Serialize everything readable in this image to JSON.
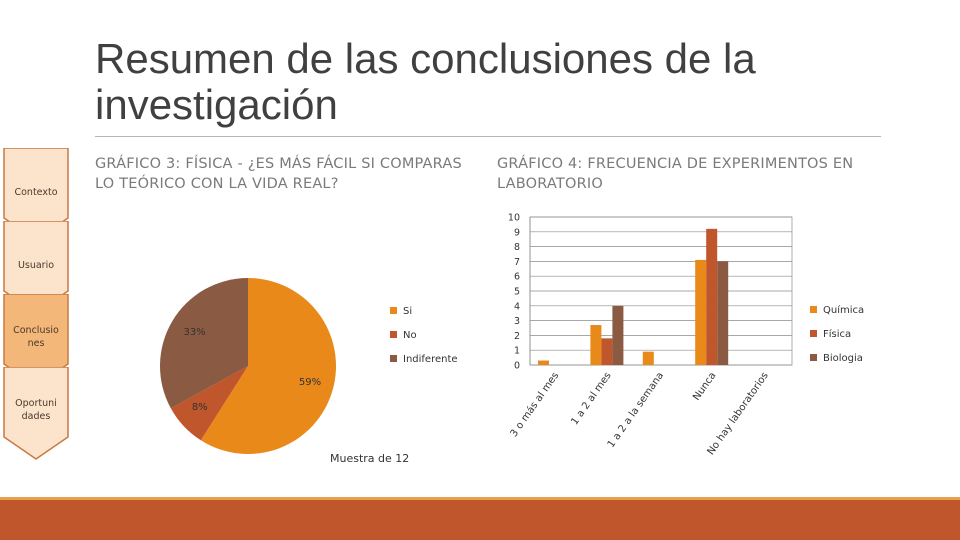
{
  "slide": {
    "title": "Resumen de las conclusiones de la investigación",
    "nav": [
      "Contexto",
      "Usuario",
      "Conclusio nes",
      "Oportuni dades"
    ],
    "nav_active_index": 2,
    "colors": {
      "accent": "#c0562b",
      "accent_light": "#e8a04a",
      "nav_fill": "#fbe3cc",
      "nav_active_fill": "#f4b77a",
      "nav_border": "#c9783e"
    }
  },
  "chart3": {
    "heading": "GRÁFICO 3: FÍSICA - ¿ES MÁS FÁCIL SI COMPARAS LO TEÓRICO CON LA VIDA REAL?",
    "note": "Muestra de 12"
  },
  "chart4": {
    "heading": "GRÁFICO 4: FRECUENCIA DE EXPERIMENTOS EN LABORATORIO"
  },
  "chart_data": [
    {
      "type": "pie",
      "title": "GRÁFICO 3: FÍSICA - ¿ES MÁS FÁCIL SI COMPARAS LO TEÓRICO CON LA VIDA REAL?",
      "categories": [
        "Si",
        "No",
        "Indiferente"
      ],
      "values": [
        59,
        8,
        33
      ],
      "labels": [
        "59%",
        "8%",
        "33%"
      ],
      "colors": [
        "#e8891a",
        "#c0562b",
        "#8b5a42"
      ],
      "legend": "right"
    },
    {
      "type": "bar",
      "title": "GRÁFICO 4: FRECUENCIA DE EXPERIMENTOS EN LABORATORIO",
      "categories": [
        "3 o más al mes",
        "1 a 2 al mes",
        "1 a 2 a la semana",
        "Nunca",
        "No hay laboratorios"
      ],
      "series": [
        {
          "name": "Química",
          "values": [
            0.3,
            2.7,
            0.9,
            7.1,
            0
          ],
          "color": "#e8891a"
        },
        {
          "name": "Física",
          "values": [
            0,
            1.8,
            0,
            9.2,
            0
          ],
          "color": "#c0562b"
        },
        {
          "name": "Biologia",
          "values": [
            0,
            4,
            0,
            7,
            0
          ],
          "color": "#8b5a42"
        }
      ],
      "yticks": [
        "0",
        "1",
        "2",
        "3",
        "4",
        "5",
        "6",
        "7",
        "8",
        "9",
        "10"
      ],
      "ylim": [
        0,
        10
      ],
      "grid": true,
      "legend": "right"
    }
  ]
}
